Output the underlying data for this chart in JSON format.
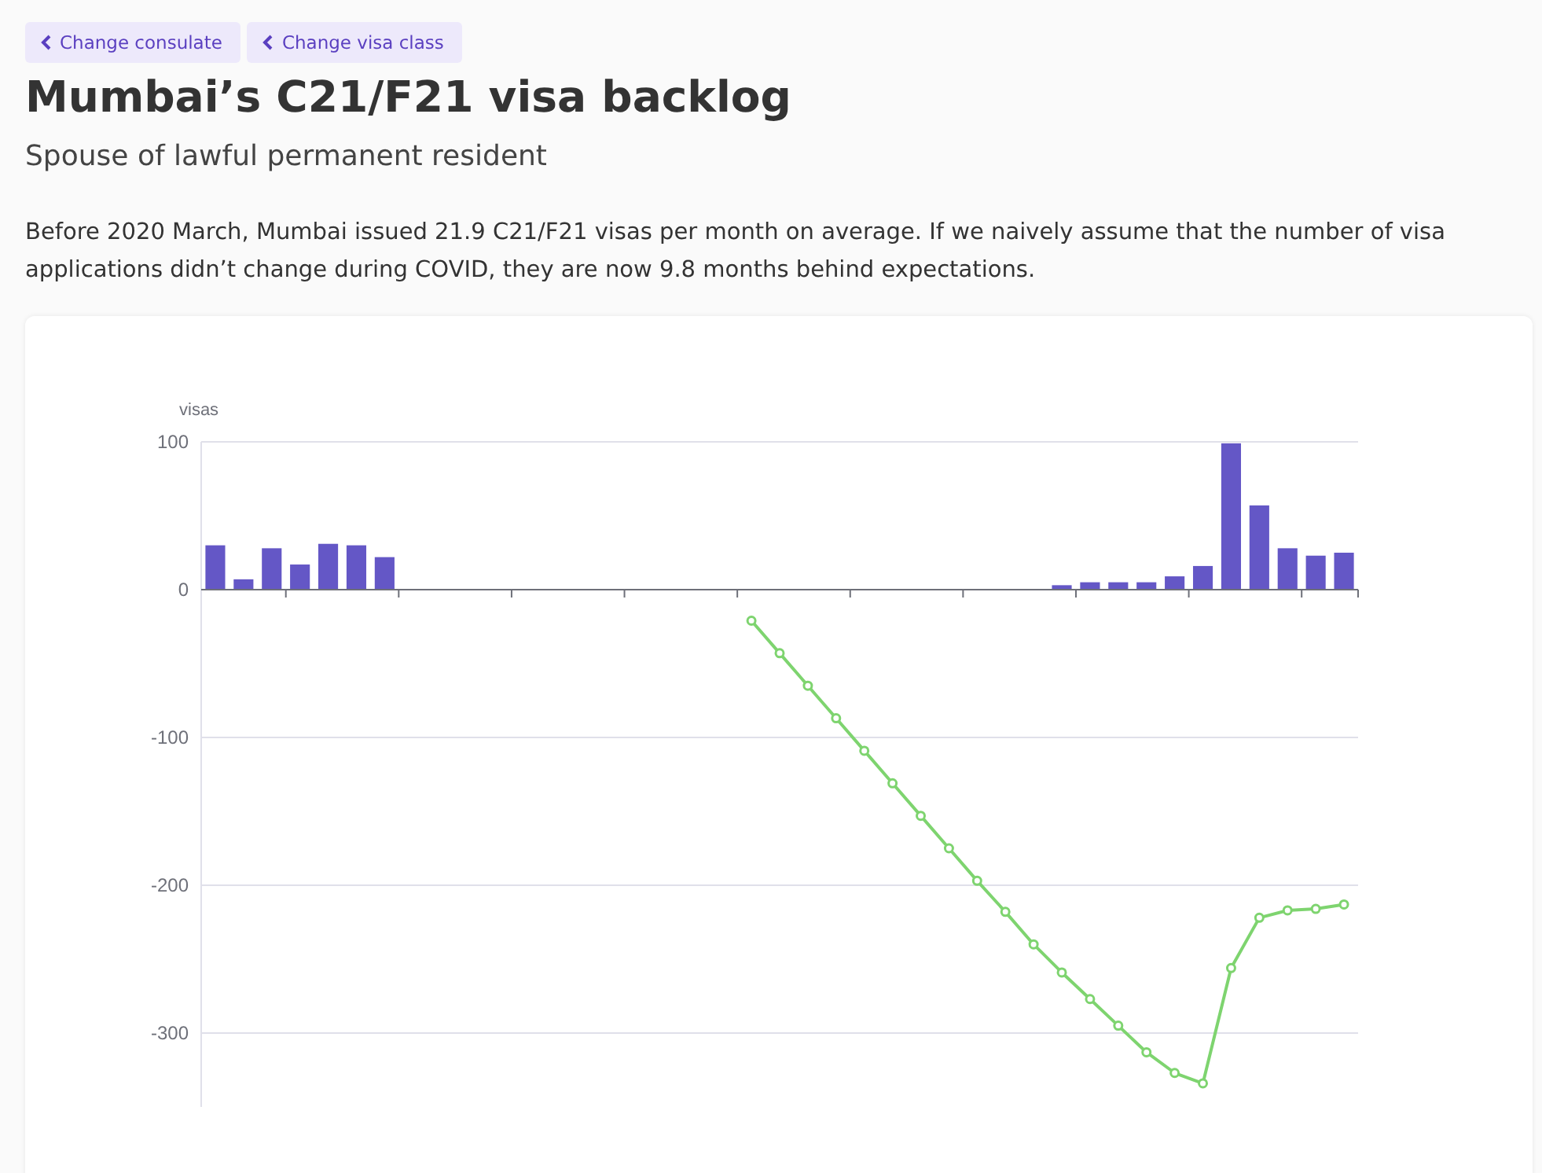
{
  "chart_data": {
    "type": "bar",
    "title": "Mumbai’s C21/F21 visa backlog",
    "subtitle": "Spouse of lawful permanent resident",
    "ylabel": "visas",
    "annotations": [
      "Change consulate",
      "Change visa class",
      "Before 2020 March, Mumbai issued 21.9 C21/F21 visas per month on average. If we naively assume that the number of visa applications didn’t change during COVID, they are now 9.8 months behind expectations."
    ],
    "categories": [
      null,
      null,
      null,
      null,
      null,
      null,
      null,
      null,
      null,
      null,
      null,
      null,
      null,
      null,
      null,
      null,
      null,
      null,
      null,
      null,
      null,
      null,
      null,
      null,
      null,
      null,
      null,
      null,
      null,
      null,
      null,
      null,
      null,
      null,
      null,
      null,
      null,
      null,
      null,
      null,
      null
    ],
    "series": [
      {
        "color": "#6457c6",
        "values": [
          30,
          7,
          28,
          17,
          31,
          30,
          22,
          0,
          0,
          0,
          0,
          0,
          0,
          0,
          0,
          0,
          0,
          0,
          0,
          0,
          0,
          0,
          0,
          0,
          0,
          0,
          0,
          0,
          0,
          0,
          3,
          5,
          5,
          5,
          9,
          16,
          99,
          57,
          28,
          23,
          25
        ]
      },
      {
        "type": "line",
        "color": "#7ed46f",
        "marker": "circle",
        "values": [
          null,
          null,
          null,
          null,
          null,
          null,
          null,
          null,
          null,
          null,
          null,
          null,
          null,
          null,
          null,
          null,
          null,
          null,
          null,
          -21,
          -43,
          -65,
          -87,
          -109,
          -131,
          -153,
          -175,
          -197,
          -218,
          -240,
          -259,
          -277,
          -295,
          -313,
          -327,
          -334,
          -256,
          -222,
          -217,
          -216,
          -213
        ]
      }
    ],
    "ylim": [
      -350,
      100
    ],
    "yticks": [
      -300,
      -200,
      -100,
      0,
      100
    ],
    "grid": "y"
  }
}
